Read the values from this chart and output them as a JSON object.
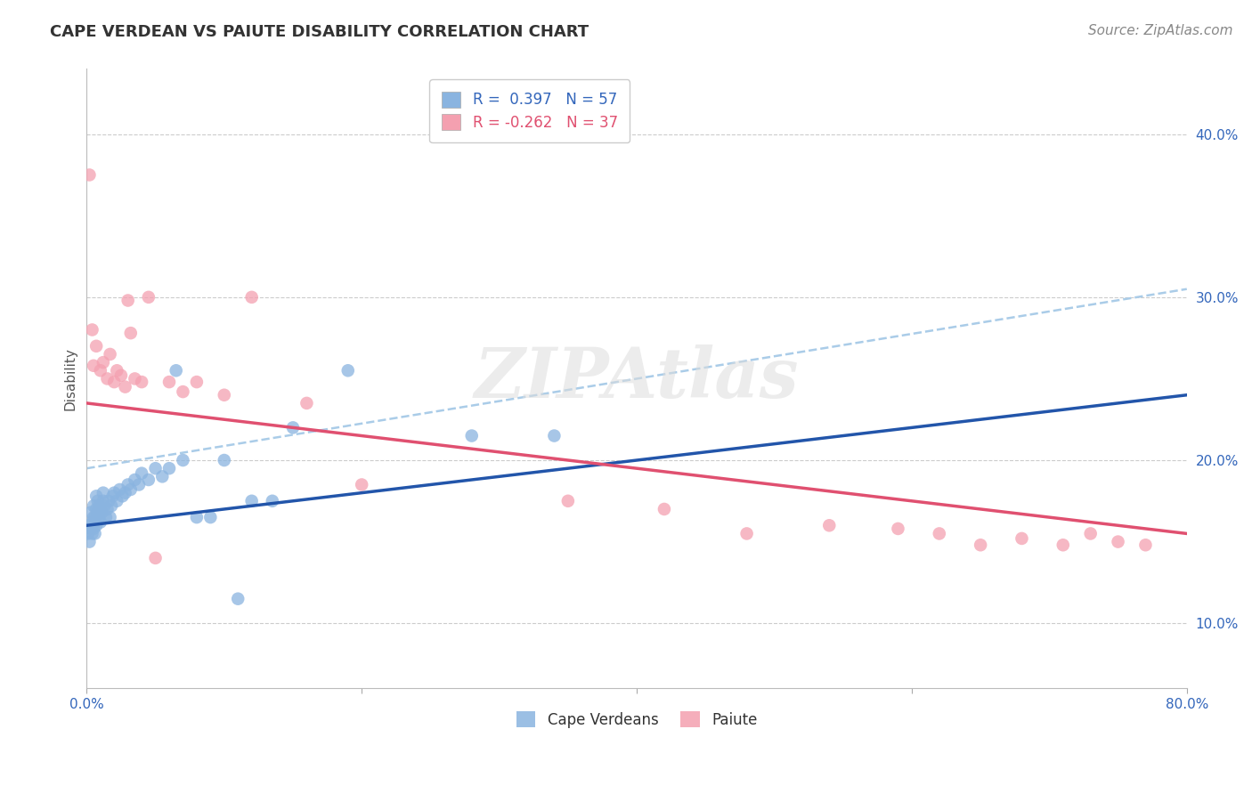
{
  "title": "CAPE VERDEAN VS PAIUTE DISABILITY CORRELATION CHART",
  "source": "Source: ZipAtlas.com",
  "ylabel": "Disability",
  "xlim": [
    0.0,
    0.8
  ],
  "ylim": [
    0.06,
    0.44
  ],
  "yticks": [
    0.1,
    0.2,
    0.3,
    0.4
  ],
  "ytick_labels": [
    "10.0%",
    "20.0%",
    "30.0%",
    "40.0%"
  ],
  "grid_color": "#cccccc",
  "background_color": "#ffffff",
  "blue_color": "#8ab4e0",
  "pink_color": "#f4a0b0",
  "blue_line_color": "#2255aa",
  "pink_line_color": "#e05070",
  "dashed_line_color": "#aacce8",
  "cape_verdean_x": [
    0.001,
    0.002,
    0.002,
    0.003,
    0.003,
    0.004,
    0.004,
    0.005,
    0.005,
    0.005,
    0.006,
    0.006,
    0.007,
    0.007,
    0.007,
    0.008,
    0.008,
    0.009,
    0.009,
    0.01,
    0.01,
    0.011,
    0.012,
    0.012,
    0.013,
    0.014,
    0.015,
    0.016,
    0.017,
    0.018,
    0.019,
    0.02,
    0.022,
    0.024,
    0.026,
    0.028,
    0.03,
    0.032,
    0.035,
    0.038,
    0.04,
    0.045,
    0.05,
    0.055,
    0.06,
    0.065,
    0.07,
    0.08,
    0.09,
    0.1,
    0.11,
    0.12,
    0.135,
    0.15,
    0.19,
    0.28,
    0.34
  ],
  "cape_verdean_y": [
    0.155,
    0.16,
    0.15,
    0.158,
    0.168,
    0.155,
    0.162,
    0.165,
    0.158,
    0.172,
    0.155,
    0.165,
    0.16,
    0.17,
    0.178,
    0.168,
    0.175,
    0.165,
    0.172,
    0.162,
    0.17,
    0.168,
    0.175,
    0.18,
    0.172,
    0.165,
    0.17,
    0.175,
    0.165,
    0.172,
    0.178,
    0.18,
    0.175,
    0.182,
    0.178,
    0.18,
    0.185,
    0.182,
    0.188,
    0.185,
    0.192,
    0.188,
    0.195,
    0.19,
    0.195,
    0.255,
    0.2,
    0.165,
    0.165,
    0.2,
    0.115,
    0.175,
    0.175,
    0.22,
    0.255,
    0.215,
    0.215
  ],
  "paiute_x": [
    0.002,
    0.004,
    0.005,
    0.007,
    0.01,
    0.012,
    0.015,
    0.017,
    0.02,
    0.022,
    0.025,
    0.028,
    0.03,
    0.032,
    0.035,
    0.04,
    0.045,
    0.05,
    0.06,
    0.07,
    0.08,
    0.1,
    0.12,
    0.16,
    0.2,
    0.35,
    0.42,
    0.48,
    0.54,
    0.59,
    0.62,
    0.65,
    0.68,
    0.71,
    0.73,
    0.75,
    0.77
  ],
  "paiute_y": [
    0.375,
    0.28,
    0.258,
    0.27,
    0.255,
    0.26,
    0.25,
    0.265,
    0.248,
    0.255,
    0.252,
    0.245,
    0.298,
    0.278,
    0.25,
    0.248,
    0.3,
    0.14,
    0.248,
    0.242,
    0.248,
    0.24,
    0.3,
    0.235,
    0.185,
    0.175,
    0.17,
    0.155,
    0.16,
    0.158,
    0.155,
    0.148,
    0.152,
    0.148,
    0.155,
    0.15,
    0.148
  ],
  "blue_trendline_x": [
    0.0,
    0.8
  ],
  "blue_trendline_y": [
    0.16,
    0.24
  ],
  "pink_trendline_x": [
    0.0,
    0.8
  ],
  "pink_trendline_y": [
    0.235,
    0.155
  ],
  "dashed_trendline_x": [
    0.0,
    0.8
  ],
  "dashed_trendline_y": [
    0.195,
    0.305
  ],
  "title_fontsize": 13,
  "axis_label_fontsize": 11,
  "tick_fontsize": 11,
  "legend_fontsize": 12,
  "source_fontsize": 11
}
